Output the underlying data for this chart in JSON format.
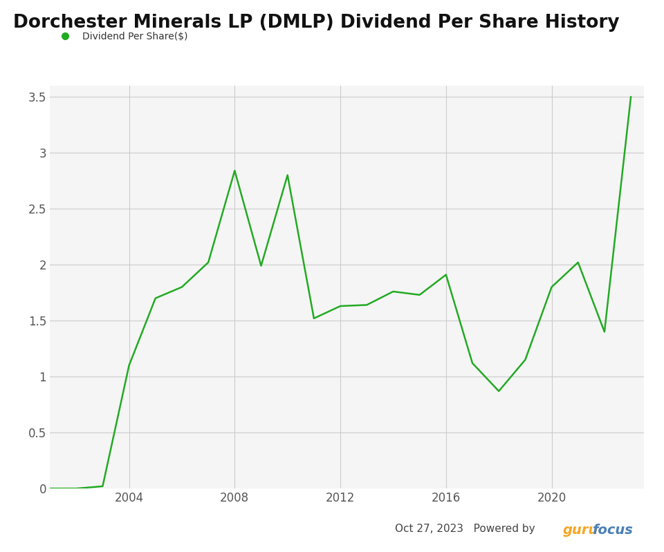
{
  "title": "Dorchester Minerals LP (DMLP) Dividend Per Share History",
  "legend_label": "Dividend Per Share($)",
  "line_color": "#22aa22",
  "background_color": "#ffffff",
  "plot_bg_color": "#f5f5f5",
  "grid_color": "#cccccc",
  "years": [
    2001,
    2002,
    2003,
    2004,
    2005,
    2006,
    2007,
    2008,
    2009,
    2010,
    2011,
    2012,
    2013,
    2014,
    2015,
    2016,
    2017,
    2018,
    2019,
    2020,
    2021,
    2022,
    2023
  ],
  "values": [
    0.0,
    0.0,
    0.02,
    1.1,
    1.7,
    1.8,
    2.02,
    2.84,
    1.99,
    2.8,
    1.52,
    1.63,
    1.64,
    1.76,
    1.73,
    1.91,
    1.12,
    0.87,
    1.15,
    1.8,
    2.02,
    1.4,
    3.5
  ],
  "xlim": [
    2001,
    2023.5
  ],
  "ylim": [
    0,
    3.6
  ],
  "yticks": [
    0,
    0.5,
    1,
    1.5,
    2,
    2.5,
    3,
    3.5
  ],
  "ytick_labels": [
    "0",
    "0.5",
    "1",
    "1.5",
    "2",
    "2.5",
    "3",
    "3.5"
  ],
  "xticks": [
    2004,
    2008,
    2012,
    2016,
    2020
  ],
  "title_fontsize": 19,
  "legend_fontsize": 10,
  "tick_fontsize": 12,
  "date_text": "Oct 27, 2023",
  "powered_text": "Powered by ",
  "guru_text": "guru",
  "focus_text": "focus",
  "guru_color": "#f5a623",
  "focus_color": "#4a7fb5"
}
